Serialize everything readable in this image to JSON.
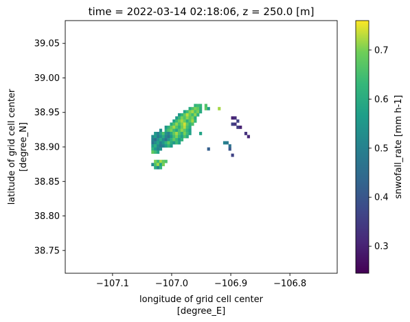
{
  "chart_data": {
    "type": "heatmap",
    "title": "time = 2022-03-14 02:18:06, z = 250.0 [m]",
    "xlabel": [
      "longitude of grid cell center",
      "[degree_E]"
    ],
    "ylabel": [
      "latitude of grid cell center",
      "[degree_N]"
    ],
    "xlim": [
      -107.18,
      -106.72
    ],
    "ylim": [
      38.717,
      39.083
    ],
    "x_ticks": [
      {
        "value": -107.1,
        "label": "−107.1"
      },
      {
        "value": -107.0,
        "label": "−107.0"
      },
      {
        "value": -106.9,
        "label": "−106.9"
      },
      {
        "value": -106.8,
        "label": "−106.8"
      }
    ],
    "y_ticks": [
      {
        "value": 38.75,
        "label": "38.75"
      },
      {
        "value": 38.8,
        "label": "38.80"
      },
      {
        "value": 38.85,
        "label": "38.85"
      },
      {
        "value": 38.9,
        "label": "38.90"
      },
      {
        "value": 38.95,
        "label": "38.95"
      },
      {
        "value": 39.0,
        "label": "39.00"
      },
      {
        "value": 39.05,
        "label": "39.05"
      }
    ],
    "colorbar": {
      "label": "snwofall_rate [mm h-1]",
      "colormap": "viridis",
      "vmin": 0.245,
      "vmax": 0.76,
      "ticks": [
        {
          "value": 0.3,
          "label": "0.3"
        },
        {
          "value": 0.4,
          "label": "0.4"
        },
        {
          "value": 0.5,
          "label": "0.5"
        },
        {
          "value": 0.6,
          "label": "0.6"
        },
        {
          "value": 0.7,
          "label": "0.7"
        }
      ]
    },
    "grid": false,
    "cell_size_deg": 0.0045,
    "cells": [
      [
        -106.9602,
        38.9601,
        0.62
      ],
      [
        -106.9557,
        38.9601,
        0.64
      ],
      [
        -106.9512,
        38.9601,
        0.63
      ],
      [
        -106.9692,
        38.9556,
        0.6
      ],
      [
        -106.9647,
        38.9556,
        0.66
      ],
      [
        -106.9602,
        38.9556,
        0.7
      ],
      [
        -106.9557,
        38.9556,
        0.68
      ],
      [
        -106.9512,
        38.9556,
        0.61
      ],
      [
        -106.9782,
        38.9511,
        0.58
      ],
      [
        -106.9737,
        38.9511,
        0.64
      ],
      [
        -106.9692,
        38.9511,
        0.7
      ],
      [
        -106.9647,
        38.9511,
        0.72
      ],
      [
        -106.9602,
        38.9511,
        0.66
      ],
      [
        -106.9557,
        38.9511,
        0.7
      ],
      [
        -106.9512,
        38.9511,
        0.6
      ],
      [
        -106.9872,
        38.9466,
        0.55
      ],
      [
        -106.9827,
        38.9466,
        0.62
      ],
      [
        -106.9782,
        38.9466,
        0.68
      ],
      [
        -106.9737,
        38.9466,
        0.73
      ],
      [
        -106.9692,
        38.9466,
        0.69
      ],
      [
        -106.9647,
        38.9466,
        0.64
      ],
      [
        -106.9602,
        38.9466,
        0.71
      ],
      [
        -106.9557,
        38.9466,
        0.62
      ],
      [
        -106.9917,
        38.9421,
        0.56
      ],
      [
        -106.9872,
        38.9421,
        0.63
      ],
      [
        -106.9827,
        38.9421,
        0.7
      ],
      [
        -106.9782,
        38.9421,
        0.66
      ],
      [
        -106.9737,
        38.9421,
        0.71
      ],
      [
        -106.9692,
        38.9421,
        0.67
      ],
      [
        -106.9647,
        38.9421,
        0.7
      ],
      [
        -106.9602,
        38.9421,
        0.6
      ],
      [
        -106.9962,
        38.9376,
        0.57
      ],
      [
        -106.9917,
        38.9376,
        0.64
      ],
      [
        -106.9872,
        38.9376,
        0.69
      ],
      [
        -106.9827,
        38.9376,
        0.72
      ],
      [
        -106.9782,
        38.9376,
        0.69
      ],
      [
        -106.9737,
        38.9376,
        0.61
      ],
      [
        -106.9692,
        38.9376,
        0.67
      ],
      [
        -106.9647,
        38.9376,
        0.72
      ],
      [
        -106.9602,
        38.9376,
        0.63
      ],
      [
        -107.0007,
        38.9331,
        0.6
      ],
      [
        -106.9962,
        38.9331,
        0.66
      ],
      [
        -106.9917,
        38.9331,
        0.71
      ],
      [
        -106.9872,
        38.9331,
        0.65
      ],
      [
        -106.9827,
        38.9331,
        0.7
      ],
      [
        -106.9782,
        38.9331,
        0.74
      ],
      [
        -106.9737,
        38.9331,
        0.68
      ],
      [
        -106.9692,
        38.9331,
        0.62
      ],
      [
        -106.9647,
        38.9331,
        0.66
      ],
      [
        -107.0097,
        38.9286,
        0.55
      ],
      [
        -107.0052,
        38.9286,
        0.62
      ],
      [
        -107.0007,
        38.9286,
        0.68
      ],
      [
        -106.9962,
        38.9286,
        0.72
      ],
      [
        -106.9917,
        38.9286,
        0.67
      ],
      [
        -106.9872,
        38.9286,
        0.61
      ],
      [
        -106.9827,
        38.9286,
        0.69
      ],
      [
        -106.9782,
        38.9286,
        0.73
      ],
      [
        -106.9737,
        38.9286,
        0.65
      ],
      [
        -106.9692,
        38.9286,
        0.6
      ],
      [
        -107.0187,
        38.9241,
        0.52
      ],
      [
        -107.0097,
        38.9241,
        0.6
      ],
      [
        -107.0052,
        38.9241,
        0.66
      ],
      [
        -107.0007,
        38.9241,
        0.7
      ],
      [
        -106.9962,
        38.9241,
        0.64
      ],
      [
        -106.9917,
        38.9241,
        0.59
      ],
      [
        -106.9872,
        38.9241,
        0.66
      ],
      [
        -106.9827,
        38.9241,
        0.71
      ],
      [
        -106.9782,
        38.9241,
        0.68
      ],
      [
        -106.9737,
        38.9241,
        0.62
      ],
      [
        -106.9692,
        38.9241,
        0.57
      ],
      [
        -107.0277,
        38.9196,
        0.55
      ],
      [
        -107.0232,
        38.9196,
        0.5
      ],
      [
        -107.0187,
        38.9196,
        0.58
      ],
      [
        -107.0142,
        38.9196,
        0.66
      ],
      [
        -107.0097,
        38.9196,
        0.54
      ],
      [
        -107.0052,
        38.9196,
        0.5
      ],
      [
        -107.0007,
        38.9196,
        0.6
      ],
      [
        -106.9962,
        38.9196,
        0.68
      ],
      [
        -106.9917,
        38.9196,
        0.72
      ],
      [
        -106.9872,
        38.9196,
        0.66
      ],
      [
        -106.9827,
        38.9196,
        0.6
      ],
      [
        -106.9782,
        38.9196,
        0.7
      ],
      [
        -106.9737,
        38.9196,
        0.64
      ],
      [
        -106.9692,
        38.9196,
        0.58
      ],
      [
        -107.0322,
        38.9151,
        0.52
      ],
      [
        -107.0277,
        38.9151,
        0.57
      ],
      [
        -107.0232,
        38.9151,
        0.48
      ],
      [
        -107.0187,
        38.9151,
        0.53
      ],
      [
        -107.0142,
        38.9151,
        0.6
      ],
      [
        -107.0097,
        38.9151,
        0.51
      ],
      [
        -107.0052,
        38.9151,
        0.47
      ],
      [
        -107.0007,
        38.9151,
        0.56
      ],
      [
        -106.9962,
        38.9151,
        0.65
      ],
      [
        -106.9917,
        38.9151,
        0.7
      ],
      [
        -106.9872,
        38.9151,
        0.62
      ],
      [
        -106.9827,
        38.9151,
        0.57
      ],
      [
        -106.9782,
        38.9151,
        0.66
      ],
      [
        -106.9737,
        38.9151,
        0.6
      ],
      [
        -107.0322,
        38.9106,
        0.5
      ],
      [
        -107.0277,
        38.9106,
        0.45
      ],
      [
        -107.0232,
        38.9106,
        0.54
      ],
      [
        -107.0187,
        38.9106,
        0.6
      ],
      [
        -107.0142,
        38.9106,
        0.52
      ],
      [
        -107.0097,
        38.9106,
        0.46
      ],
      [
        -107.0052,
        38.9106,
        0.55
      ],
      [
        -107.0007,
        38.9106,
        0.62
      ],
      [
        -106.9962,
        38.9106,
        0.68
      ],
      [
        -106.9917,
        38.9106,
        0.63
      ],
      [
        -106.9872,
        38.9106,
        0.56
      ],
      [
        -106.9827,
        38.9106,
        0.62
      ],
      [
        -107.0322,
        38.9061,
        0.47
      ],
      [
        -107.0277,
        38.9061,
        0.53
      ],
      [
        -107.0232,
        38.9061,
        0.58
      ],
      [
        -107.0187,
        38.9061,
        0.5
      ],
      [
        -107.0142,
        38.9061,
        0.55
      ],
      [
        -107.0097,
        38.9061,
        0.62
      ],
      [
        -107.0052,
        38.9061,
        0.68
      ],
      [
        -107.0007,
        38.9061,
        0.6
      ],
      [
        -106.9962,
        38.9061,
        0.55
      ],
      [
        -106.9917,
        38.9061,
        0.64
      ],
      [
        -106.9872,
        38.9061,
        0.58
      ],
      [
        -107.0322,
        38.9016,
        0.56
      ],
      [
        -107.0277,
        38.9016,
        0.61
      ],
      [
        -107.0232,
        38.9016,
        0.52
      ],
      [
        -107.0187,
        38.9016,
        0.47
      ],
      [
        -107.0142,
        38.9016,
        0.5
      ],
      [
        -107.0097,
        38.9016,
        0.57
      ],
      [
        -107.0052,
        38.9016,
        0.63
      ],
      [
        -107.0007,
        38.9016,
        0.56
      ],
      [
        -107.0322,
        38.8971,
        0.62
      ],
      [
        -107.0277,
        38.8971,
        0.55
      ],
      [
        -107.0232,
        38.8971,
        0.5
      ],
      [
        -107.0187,
        38.8971,
        0.54
      ],
      [
        -107.0322,
        38.8926,
        0.68
      ],
      [
        -107.0277,
        38.8926,
        0.64
      ],
      [
        -107.0232,
        38.8926,
        0.58
      ],
      [
        -107.0277,
        38.8791,
        0.7
      ],
      [
        -107.0232,
        38.8791,
        0.64
      ],
      [
        -107.0187,
        38.8791,
        0.72
      ],
      [
        -107.0142,
        38.8791,
        0.68
      ],
      [
        -107.0097,
        38.8791,
        0.66
      ],
      [
        -107.0322,
        38.8746,
        0.52
      ],
      [
        -107.0277,
        38.8746,
        0.66
      ],
      [
        -107.0232,
        38.8746,
        0.72
      ],
      [
        -107.0187,
        38.8746,
        0.58
      ],
      [
        -107.0142,
        38.8746,
        0.7
      ],
      [
        -107.0232,
        38.8701,
        0.5
      ],
      [
        -107.0187,
        38.8701,
        0.62
      ],
      [
        -107.0277,
        38.8701,
        0.6
      ],
      [
        -106.9512,
        38.9196,
        0.58
      ],
      [
        -106.9422,
        38.9601,
        0.66
      ],
      [
        -106.9422,
        38.9556,
        0.68
      ],
      [
        -106.9377,
        38.9556,
        0.56
      ],
      [
        -106.9197,
        38.9556,
        0.72
      ],
      [
        -106.8972,
        38.9421,
        0.3
      ],
      [
        -106.8927,
        38.9421,
        0.32
      ],
      [
        -106.8882,
        38.9376,
        0.36
      ],
      [
        -106.8927,
        38.9331,
        0.33
      ],
      [
        -106.8837,
        38.9286,
        0.3
      ],
      [
        -106.8882,
        38.9286,
        0.35
      ],
      [
        -106.8747,
        38.9196,
        0.33
      ],
      [
        -106.8702,
        38.9151,
        0.31
      ],
      [
        -106.8972,
        38.9331,
        0.36
      ],
      [
        -106.9107,
        38.9061,
        0.5
      ],
      [
        -106.9062,
        38.9061,
        0.48
      ],
      [
        -106.9017,
        38.9016,
        0.46
      ],
      [
        -106.9017,
        38.8971,
        0.4
      ],
      [
        -106.9377,
        38.8971,
        0.42
      ],
      [
        -106.8972,
        38.8881,
        0.36
      ]
    ]
  }
}
